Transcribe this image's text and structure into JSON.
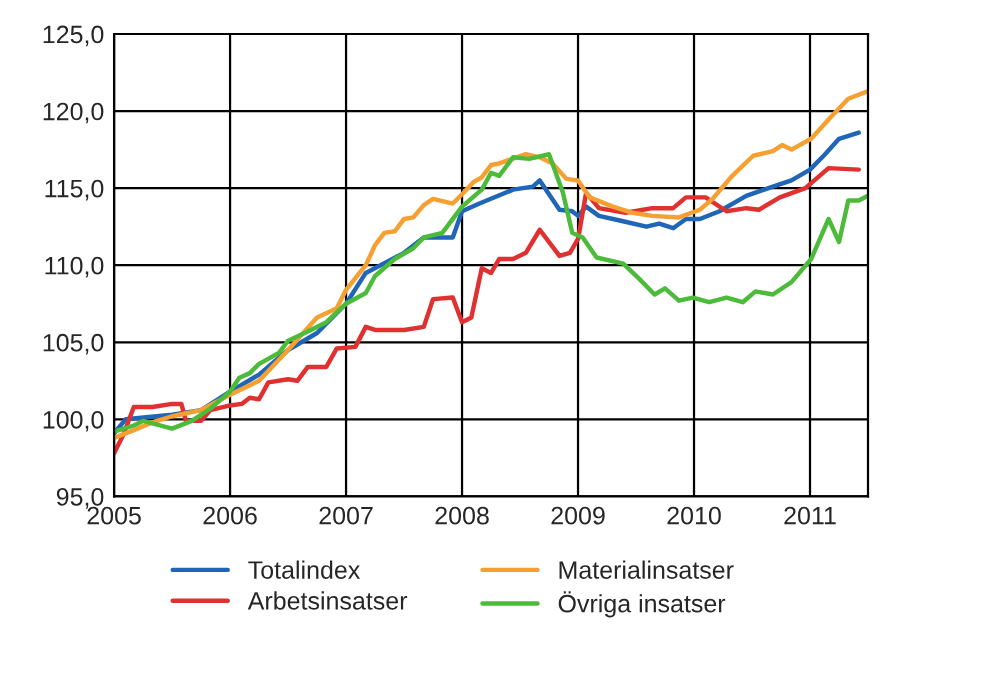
{
  "chart_data": {
    "type": "line",
    "xlim": [
      2005,
      2011.5
    ],
    "xticks": [
      2005,
      2006,
      2007,
      2008,
      2009,
      2010,
      2011
    ],
    "ylim": [
      95,
      125
    ],
    "yticks": [
      {
        "value": 95,
        "label": "95,0"
      },
      {
        "value": 100,
        "label": "100,0"
      },
      {
        "value": 105,
        "label": "105,0"
      },
      {
        "value": 110,
        "label": "110,0"
      },
      {
        "value": 115,
        "label": "115,0"
      },
      {
        "value": 120,
        "label": "120,0"
      },
      {
        "value": 125,
        "label": "125,0"
      }
    ],
    "grid": true,
    "legend": "bottom",
    "marker": "none",
    "line_style": "solid",
    "series": [
      {
        "name": "Totalindex",
        "color": "#1f66b8",
        "x": [
          2005.0,
          2005.1,
          2005.5,
          2005.75,
          2006.0,
          2006.25,
          2006.5,
          2006.75,
          2007.0,
          2007.17,
          2007.5,
          2007.67,
          2007.92,
          2008.0,
          2008.15,
          2008.44,
          2008.61,
          2008.67,
          2008.84,
          2008.95,
          2009.0,
          2009.07,
          2009.18,
          2009.36,
          2009.59,
          2009.7,
          2009.82,
          2009.93,
          2010.05,
          2010.22,
          2010.45,
          2010.68,
          2010.84,
          2011.0,
          2011.13,
          2011.25,
          2011.42
        ],
        "values": [
          99.1,
          100.0,
          100.3,
          100.6,
          101.8,
          102.9,
          104.5,
          105.6,
          107.5,
          109.5,
          110.8,
          111.8,
          111.8,
          113.5,
          114.0,
          114.9,
          115.1,
          115.5,
          113.6,
          113.5,
          113.2,
          113.8,
          113.2,
          112.9,
          112.5,
          112.7,
          112.4,
          113.0,
          113.0,
          113.5,
          114.5,
          115.1,
          115.5,
          116.2,
          117.2,
          118.2,
          118.6
        ]
      },
      {
        "name": "Arbetsinsatser",
        "color": "#e03030",
        "x": [
          2005.0,
          2005.08,
          2005.17,
          2005.33,
          2005.5,
          2005.58,
          2005.62,
          2005.75,
          2005.83,
          2006.0,
          2006.1,
          2006.17,
          2006.25,
          2006.33,
          2006.5,
          2006.58,
          2006.67,
          2006.83,
          2006.92,
          2007.08,
          2007.17,
          2007.25,
          2007.5,
          2007.67,
          2007.75,
          2007.92,
          2008.0,
          2008.08,
          2008.17,
          2008.25,
          2008.32,
          2008.44,
          2008.55,
          2008.67,
          2008.84,
          2008.93,
          2009.0,
          2009.07,
          2009.18,
          2009.41,
          2009.64,
          2009.82,
          2009.93,
          2010.1,
          2010.28,
          2010.45,
          2010.56,
          2010.74,
          2010.96,
          2011.16,
          2011.42
        ],
        "values": [
          97.8,
          99.0,
          100.8,
          100.8,
          101.0,
          101.0,
          99.9,
          99.9,
          100.6,
          100.9,
          101.0,
          101.4,
          101.3,
          102.4,
          102.6,
          102.5,
          103.4,
          103.4,
          104.6,
          104.7,
          106.0,
          105.8,
          105.8,
          106.0,
          107.8,
          107.9,
          106.3,
          106.6,
          109.8,
          109.5,
          110.4,
          110.4,
          110.8,
          112.3,
          110.6,
          110.8,
          111.7,
          114.7,
          113.7,
          113.4,
          113.7,
          113.7,
          114.4,
          114.4,
          113.5,
          113.7,
          113.6,
          114.4,
          115.0,
          116.3,
          116.2
        ]
      },
      {
        "name": "Materialinsatser",
        "color": "#f5a030",
        "x": [
          2005.0,
          2005.17,
          2005.33,
          2005.5,
          2005.75,
          2006.0,
          2006.25,
          2006.5,
          2006.75,
          2006.92,
          2007.0,
          2007.17,
          2007.25,
          2007.33,
          2007.42,
          2007.5,
          2007.58,
          2007.67,
          2007.75,
          2007.92,
          2008.0,
          2008.1,
          2008.17,
          2008.25,
          2008.32,
          2008.55,
          2008.67,
          2008.78,
          2008.9,
          2009.0,
          2009.1,
          2009.3,
          2009.47,
          2009.64,
          2009.87,
          2010.05,
          2010.16,
          2010.33,
          2010.51,
          2010.68,
          2010.76,
          2010.84,
          2011.01,
          2011.19,
          2011.33,
          2011.5
        ],
        "values": [
          98.8,
          99.3,
          99.8,
          100.2,
          100.6,
          101.6,
          102.5,
          104.5,
          106.6,
          107.2,
          108.4,
          110.0,
          111.3,
          112.1,
          112.2,
          113.0,
          113.1,
          113.9,
          114.3,
          114.0,
          114.6,
          115.4,
          115.7,
          116.5,
          116.6,
          117.2,
          117.0,
          116.6,
          115.6,
          115.5,
          114.4,
          113.8,
          113.4,
          113.2,
          113.1,
          113.6,
          114.3,
          115.8,
          117.1,
          117.4,
          117.8,
          117.5,
          118.2,
          119.7,
          120.8,
          121.3
        ]
      },
      {
        "name": "Övriga insatser",
        "color": "#4dbb3a",
        "x": [
          2005.0,
          2005.17,
          2005.25,
          2005.5,
          2005.67,
          2005.83,
          2006.0,
          2006.08,
          2006.17,
          2006.25,
          2006.42,
          2006.5,
          2006.67,
          2006.83,
          2007.0,
          2007.17,
          2007.25,
          2007.42,
          2007.58,
          2007.67,
          2007.83,
          2008.0,
          2008.17,
          2008.25,
          2008.32,
          2008.44,
          2008.58,
          2008.75,
          2008.87,
          2008.95,
          2009.04,
          2009.16,
          2009.39,
          2009.53,
          2009.66,
          2009.75,
          2009.87,
          2009.99,
          2010.13,
          2010.28,
          2010.42,
          2010.53,
          2010.68,
          2010.84,
          2011.01,
          2011.16,
          2011.25,
          2011.33,
          2011.42,
          2011.5
        ],
        "values": [
          99.2,
          99.6,
          99.9,
          99.4,
          99.9,
          100.7,
          101.8,
          102.7,
          103.0,
          103.6,
          104.3,
          105.1,
          105.7,
          106.3,
          107.5,
          108.2,
          109.3,
          110.4,
          111.1,
          111.8,
          112.1,
          113.8,
          114.9,
          116.0,
          115.8,
          117.0,
          116.9,
          117.2,
          114.7,
          112.1,
          111.8,
          110.5,
          110.1,
          109.1,
          108.1,
          108.5,
          107.7,
          107.9,
          107.6,
          107.9,
          107.6,
          108.3,
          108.1,
          108.9,
          110.4,
          113.0,
          111.5,
          114.2,
          114.2,
          114.5
        ]
      }
    ]
  }
}
